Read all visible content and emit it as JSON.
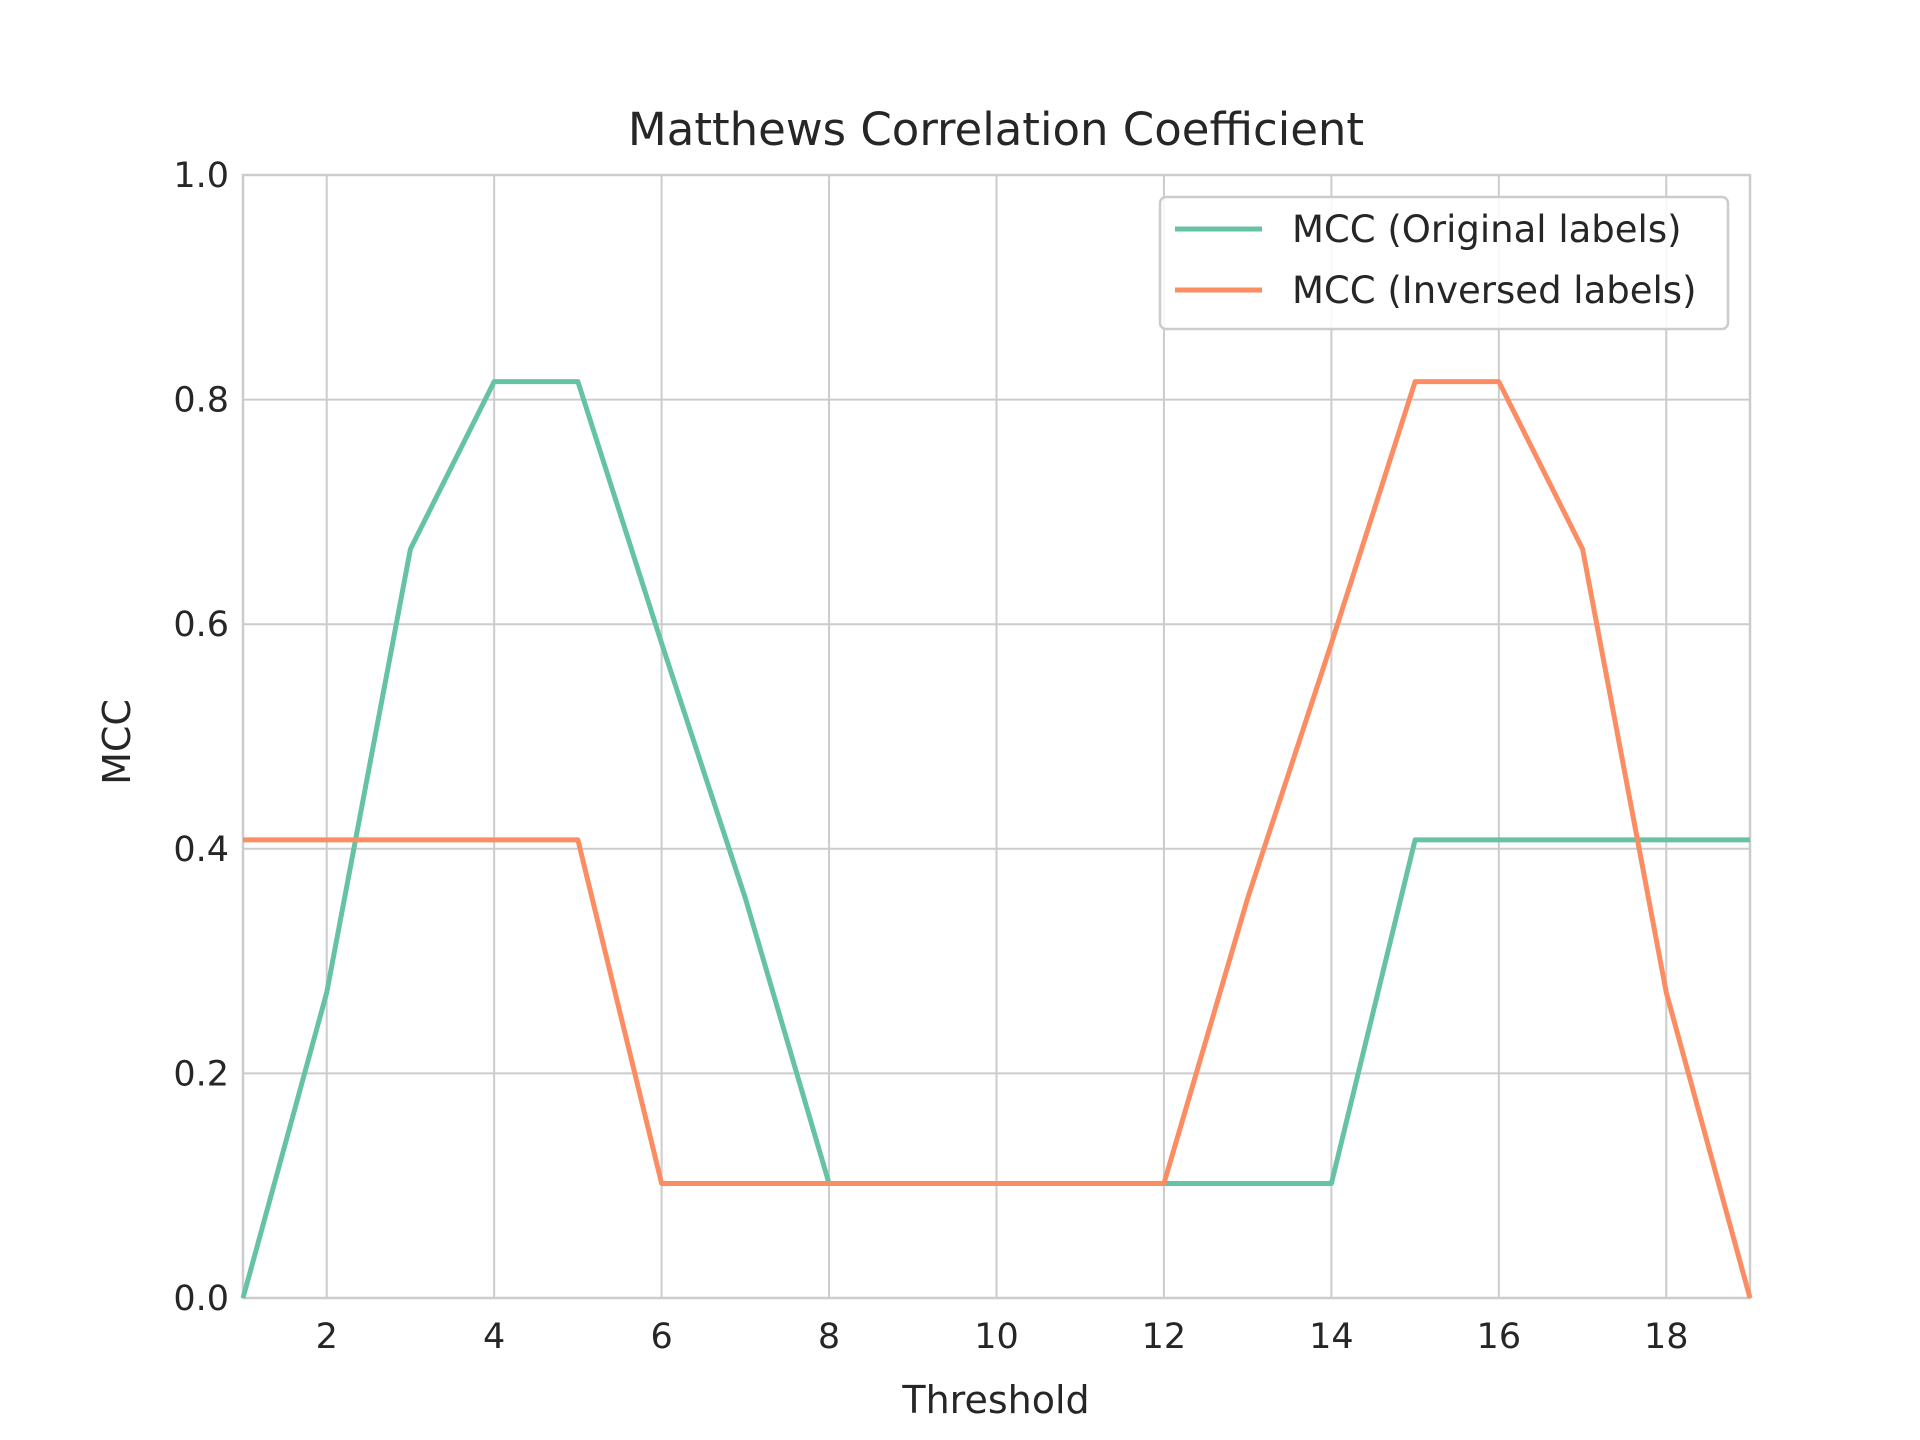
{
  "chart_data": {
    "type": "line",
    "title": "Matthews Correlation Coefficient",
    "xlabel": "Threshold",
    "ylabel": "MCC",
    "xlim": [
      1,
      19
    ],
    "ylim": [
      0.0,
      1.0
    ],
    "xticks": [
      2,
      4,
      6,
      8,
      10,
      12,
      14,
      16,
      18
    ],
    "yticks": [
      "0.0",
      "0.2",
      "0.4",
      "0.6",
      "0.8",
      "1.0"
    ],
    "grid": true,
    "legend_position": "top-right",
    "x": [
      1,
      2,
      3,
      4,
      5,
      6,
      7,
      8,
      9,
      10,
      11,
      12,
      13,
      14,
      15,
      16,
      17,
      18,
      19
    ],
    "series": [
      {
        "name": "MCC (Original labels)",
        "color": "#66c2a5",
        "values": [
          0.0,
          0.272,
          0.667,
          0.816,
          0.816,
          0.583,
          0.356,
          0.102,
          0.102,
          0.102,
          0.102,
          0.102,
          0.102,
          0.102,
          0.408,
          0.408,
          0.408,
          0.408,
          0.408
        ]
      },
      {
        "name": "MCC (Inversed labels)",
        "color": "#fc8d62",
        "values": [
          0.408,
          0.408,
          0.408,
          0.408,
          0.408,
          0.102,
          0.102,
          0.102,
          0.102,
          0.102,
          0.102,
          0.102,
          0.356,
          0.583,
          0.816,
          0.816,
          0.667,
          0.272,
          0.0
        ]
      }
    ]
  }
}
